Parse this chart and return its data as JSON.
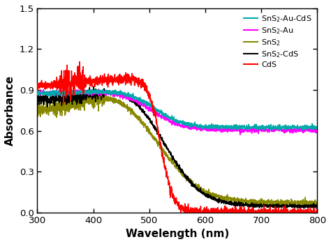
{
  "title": "",
  "xlabel": "Wavelength (nm)",
  "ylabel": "Absorbance",
  "xlim": [
    300,
    800
  ],
  "ylim": [
    0.0,
    1.5
  ],
  "yticks": [
    0.0,
    0.3,
    0.6,
    0.9,
    1.2,
    1.5
  ],
  "xticks": [
    300,
    400,
    500,
    600,
    700,
    800
  ],
  "colors": {
    "sns2_au_cds": "#00AAAA",
    "sns2_au": "#FF00FF",
    "sns2": "#888800",
    "sns2_cds": "#000000",
    "cds": "#FF0000"
  },
  "background_color": "#ffffff"
}
